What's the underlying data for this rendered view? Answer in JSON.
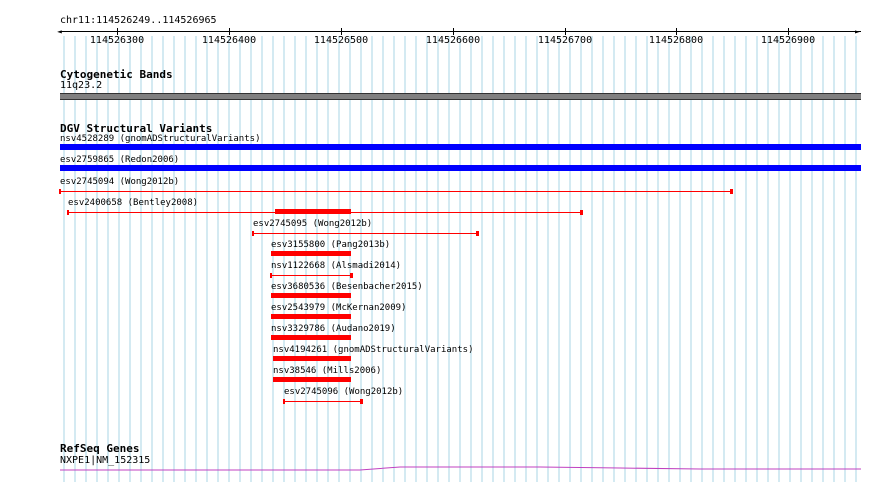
{
  "ruler": {
    "coordinates": "chr11:114526249..114526965",
    "start": 114526249,
    "end": 114526965,
    "ticks": [
      "114526300",
      "114526400",
      "114526500",
      "114526600",
      "114526700",
      "114526800",
      "114526900"
    ]
  },
  "cytoband_track": {
    "title": "Cytogenetic Bands",
    "band": "11q23.2",
    "color": "#808080"
  },
  "dgv_track": {
    "title": "DGV Structural Variants",
    "colors": {
      "loss": "#ff0000",
      "gain": "#0000ff"
    },
    "features": [
      {
        "label": "nsv4528289 (gnomADStructuralVariants)",
        "kind": "gain"
      },
      {
        "label": "esv2759865 (Redon2006)",
        "kind": "gain"
      },
      {
        "label": "esv2745094 (Wong2012b)",
        "kind": "loss"
      },
      {
        "label": "esv2400658 (Bentley2008)",
        "kind": "loss"
      },
      {
        "label": "esv2745095 (Wong2012b)",
        "kind": "loss"
      },
      {
        "label": "esv3155800 (Pang2013b)",
        "kind": "loss"
      },
      {
        "label": "nsv1122668 (Alsmadi2014)",
        "kind": "loss"
      },
      {
        "label": "esv3680536 (Besenbacher2015)",
        "kind": "loss"
      },
      {
        "label": "esv2543979 (McKernan2009)",
        "kind": "loss"
      },
      {
        "label": "nsv3329786 (Audano2019)",
        "kind": "loss"
      },
      {
        "label": "nsv4194261 (gnomADStructuralVariants)",
        "kind": "loss"
      },
      {
        "label": "nsv38546 (Mills2006)",
        "kind": "loss"
      },
      {
        "label": "esv2745096 (Wong2012b)",
        "kind": "loss"
      }
    ]
  },
  "refseq_track": {
    "title": "RefSeq Genes",
    "gene": "NXPE1|NM_152315",
    "color": "#c040c0"
  },
  "grid_color": "#aad4e6"
}
